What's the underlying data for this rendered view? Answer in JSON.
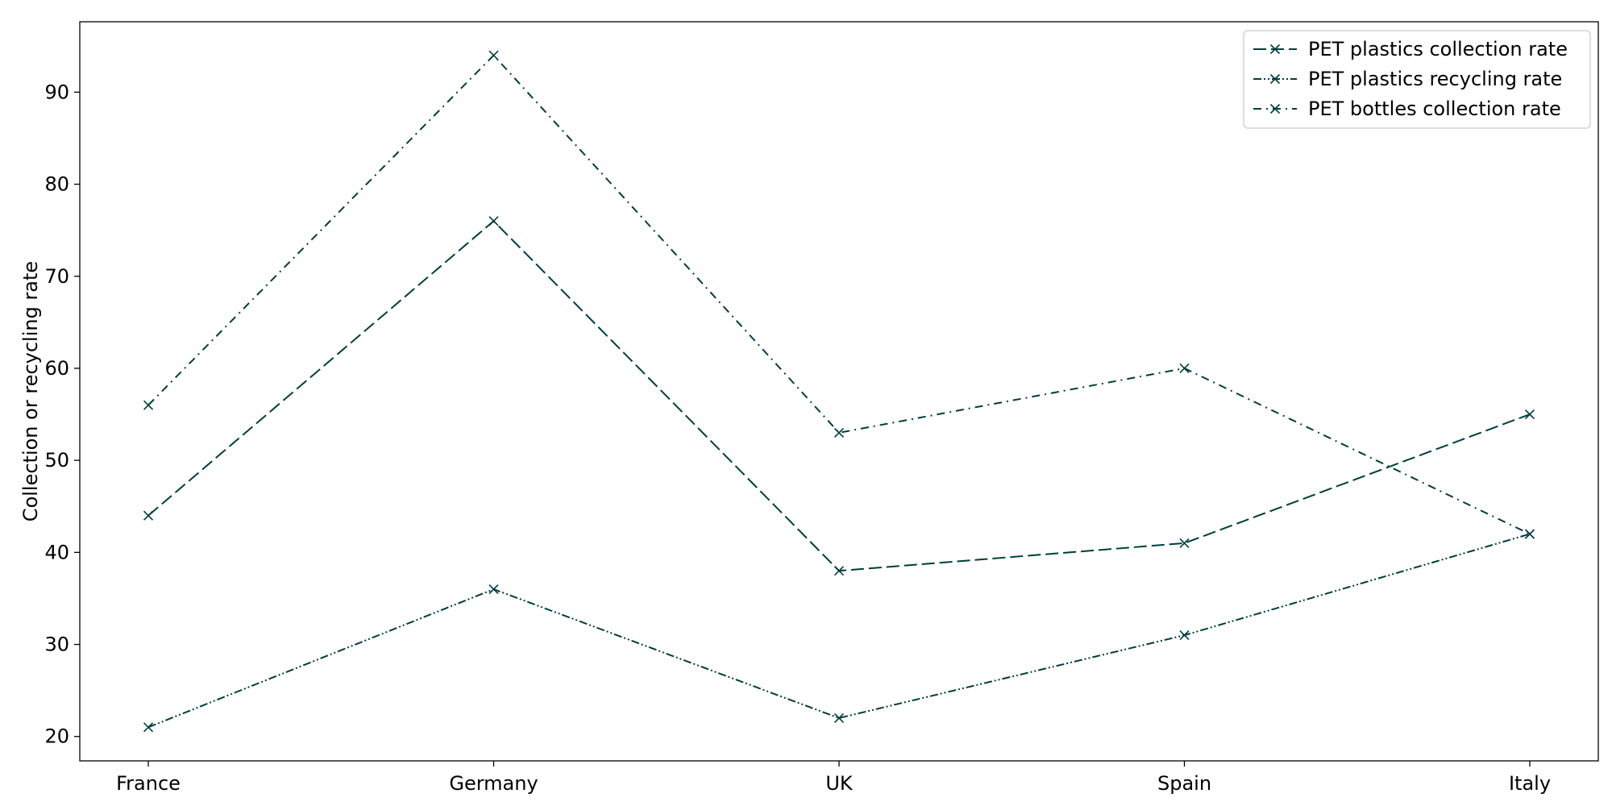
{
  "chart_data": {
    "type": "line",
    "categories": [
      "France",
      "Germany",
      "UK",
      "Spain",
      "Italy"
    ],
    "series": [
      {
        "name": "PET plastics collection rate",
        "values": [
          44,
          76,
          38,
          41,
          55
        ],
        "dash": "16 6",
        "color": "#003d3d"
      },
      {
        "name": "PET plastics recycling rate",
        "values": [
          21,
          36,
          22,
          31,
          42
        ],
        "dash": "10 3 2 3 2 3",
        "color": "#003d3d"
      },
      {
        "name": "PET bottles collection rate",
        "values": [
          56,
          94,
          53,
          60,
          42
        ],
        "dash": "10 6 2 6",
        "color": "#003d3d"
      }
    ],
    "xlabel": "",
    "ylabel": "Collection or recycling rate",
    "ylim": [
      17.35,
      97.65
    ],
    "yticks": [
      20,
      30,
      40,
      50,
      60,
      70,
      80,
      90
    ],
    "grid": false,
    "legend_position": "top-right",
    "marker": "x"
  }
}
